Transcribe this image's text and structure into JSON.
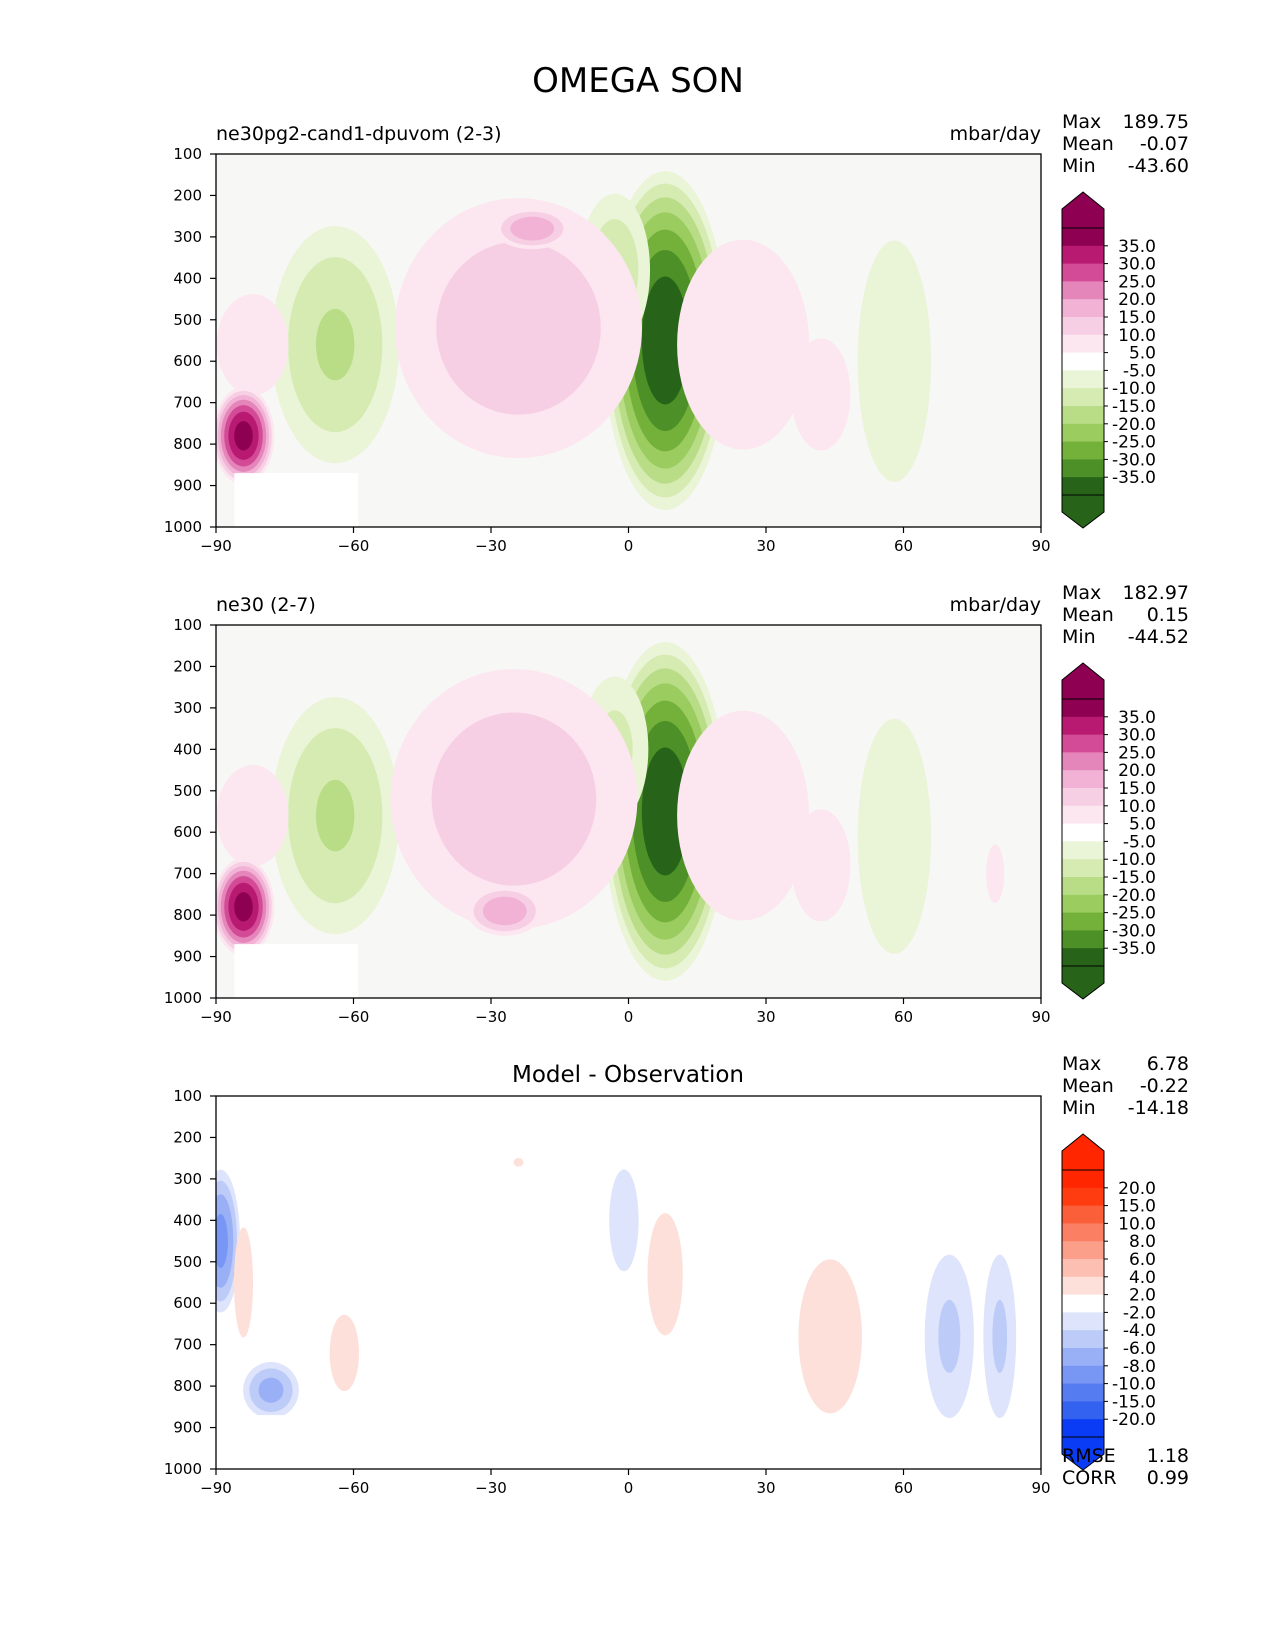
{
  "figure_title": "OMEGA SON",
  "colors": {
    "bg_field": "#f7f7f5",
    "mg_pos": [
      "#fce6f0",
      "#f7cfe4",
      "#f1b2d6",
      "#e586ba",
      "#d34a97",
      "#b81a71",
      "#8e0152"
    ],
    "mg_neg": [
      "#eaf4d6",
      "#d6ebb2",
      "#b8dd86",
      "#9acc60",
      "#74b13b",
      "#4d9028",
      "#276419"
    ],
    "rb_pos": [
      "#fde0da",
      "#fcbfb2",
      "#fc9f8a",
      "#fb7f62",
      "#fb5f3a",
      "#ff3b10",
      "#ff2600"
    ],
    "rb_neg": [
      "#dde4fb",
      "#bccbf8",
      "#9ab0f6",
      "#7896f4",
      "#567cf2",
      "#3361f0",
      "#0a3cf5"
    ]
  },
  "chart_data": [
    {
      "type": "contour",
      "title": "ne30pg2-cand1-dpuvom (2-3)",
      "units": "mbar/day",
      "stats": [
        {
          "label": "Max",
          "value": "189.75"
        },
        {
          "label": "Mean",
          "value": "-0.07"
        },
        {
          "label": "Min",
          "value": "-43.60"
        }
      ],
      "xlim": [
        -90,
        90
      ],
      "ylim": [
        1000,
        100
      ],
      "x_ticks": [
        "−90",
        "−60",
        "−30",
        "0",
        "30",
        "60",
        "90"
      ],
      "y_ticks": [
        "100",
        "200",
        "300",
        "400",
        "500",
        "600",
        "700",
        "800",
        "900",
        "1000"
      ],
      "colorbar_labels": [
        "35.0",
        "30.0",
        "25.0",
        "20.0",
        "15.0",
        "10.0",
        "5.0",
        "-5.0",
        "-10.0",
        "-15.0",
        "-20.0",
        "-25.0",
        "-30.0",
        "-35.0"
      ],
      "blobs": [
        {
          "lat": 8,
          "p": 550,
          "dlat": 6,
          "dp": 380,
          "val": -40
        },
        {
          "lat": -3,
          "p": 380,
          "dlat": 4,
          "dp": 200,
          "val": -14
        },
        {
          "lat": -64,
          "p": 560,
          "dlat": 7,
          "dp": 300,
          "val": -16
        },
        {
          "lat": 58,
          "p": 600,
          "dlat": 5,
          "dp": 380,
          "val": -9
        },
        {
          "lat": -24,
          "p": 520,
          "dlat": 14,
          "dp": 340,
          "val": 14
        },
        {
          "lat": -21,
          "p": 280,
          "dlat": 4,
          "dp": 50,
          "val": 20
        },
        {
          "lat": 25,
          "p": 560,
          "dlat": 9,
          "dp": 330,
          "val": 9
        },
        {
          "lat": 42,
          "p": 680,
          "dlat": 5,
          "dp": 220,
          "val": 7
        },
        {
          "lat": -82,
          "p": 560,
          "dlat": 8,
          "dp": 260,
          "val": 6
        },
        {
          "lat": -84,
          "p": 780,
          "dlat": 3,
          "dp": 110,
          "val": 38
        }
      ]
    },
    {
      "type": "contour",
      "title": "ne30 (2-7)",
      "units": "mbar/day",
      "stats": [
        {
          "label": "Max",
          "value": "182.97"
        },
        {
          "label": "Mean",
          "value": "0.15"
        },
        {
          "label": "Min",
          "value": "-44.52"
        }
      ],
      "xlim": [
        -90,
        90
      ],
      "ylim": [
        1000,
        100
      ],
      "x_ticks": [
        "−90",
        "−60",
        "−30",
        "0",
        "30",
        "60",
        "90"
      ],
      "y_ticks": [
        "100",
        "200",
        "300",
        "400",
        "500",
        "600",
        "700",
        "800",
        "900",
        "1000"
      ],
      "colorbar_labels": [
        "35.0",
        "30.0",
        "25.0",
        "20.0",
        "15.0",
        "10.0",
        "5.0",
        "-5.0",
        "-10.0",
        "-15.0",
        "-20.0",
        "-25.0",
        "-30.0",
        "-35.0"
      ],
      "blobs": [
        {
          "lat": 8,
          "p": 550,
          "dlat": 6,
          "dp": 380,
          "val": -40
        },
        {
          "lat": -3,
          "p": 400,
          "dlat": 4,
          "dp": 200,
          "val": -12
        },
        {
          "lat": -64,
          "p": 560,
          "dlat": 7,
          "dp": 300,
          "val": -16
        },
        {
          "lat": 58,
          "p": 610,
          "dlat": 5,
          "dp": 370,
          "val": -9
        },
        {
          "lat": -25,
          "p": 520,
          "dlat": 14,
          "dp": 340,
          "val": 14
        },
        {
          "lat": -27,
          "p": 790,
          "dlat": 4,
          "dp": 60,
          "val": 20
        },
        {
          "lat": 25,
          "p": 560,
          "dlat": 9,
          "dp": 330,
          "val": 9
        },
        {
          "lat": 42,
          "p": 680,
          "dlat": 5,
          "dp": 220,
          "val": 7
        },
        {
          "lat": 80,
          "p": 700,
          "dlat": 2,
          "dp": 150,
          "val": 6
        },
        {
          "lat": -82,
          "p": 560,
          "dlat": 8,
          "dp": 260,
          "val": 6
        },
        {
          "lat": -84,
          "p": 780,
          "dlat": 3,
          "dp": 110,
          "val": 38
        }
      ]
    },
    {
      "type": "contour",
      "title": "Model - Observation",
      "units": "",
      "stats": [
        {
          "label": "Max",
          "value": "6.78"
        },
        {
          "label": "Mean",
          "value": "-0.22"
        },
        {
          "label": "Min",
          "value": "-14.18"
        }
      ],
      "extra_stats": [
        {
          "label": "RMSE",
          "value": "1.18"
        },
        {
          "label": "CORR",
          "value": "0.99"
        }
      ],
      "xlim": [
        -90,
        90
      ],
      "ylim": [
        1000,
        100
      ],
      "x_ticks": [
        "−90",
        "−60",
        "−30",
        "0",
        "30",
        "60",
        "90"
      ],
      "y_ticks": [
        "100",
        "200",
        "300",
        "400",
        "500",
        "600",
        "700",
        "800",
        "900",
        "1000"
      ],
      "colorbar_labels": [
        "20.0",
        "15.0",
        "10.0",
        "8.0",
        "6.0",
        "4.0",
        "2.0",
        "-2.0",
        "-4.0",
        "-6.0",
        "-8.0",
        "-10.0",
        "-15.0",
        "-20.0"
      ],
      "blobs": [
        {
          "lat": -89,
          "p": 450,
          "dlat": 2,
          "dp": 170,
          "val": -9
        },
        {
          "lat": -78,
          "p": 810,
          "dlat": 3,
          "dp": 70,
          "val": -7
        },
        {
          "lat": -84,
          "p": 550,
          "dlat": 1.5,
          "dp": 200,
          "val": 3
        },
        {
          "lat": -62,
          "p": 720,
          "dlat": 2.5,
          "dp": 150,
          "val": 2.8
        },
        {
          "lat": -1,
          "p": 400,
          "dlat": 2.5,
          "dp": 200,
          "val": -2.8
        },
        {
          "lat": 8,
          "p": 530,
          "dlat": 3,
          "dp": 240,
          "val": 2.8
        },
        {
          "lat": 44,
          "p": 680,
          "dlat": 5,
          "dp": 280,
          "val": 3
        },
        {
          "lat": 70,
          "p": 680,
          "dlat": 3,
          "dp": 230,
          "val": -4.5
        },
        {
          "lat": 81,
          "p": 680,
          "dlat": 2,
          "dp": 230,
          "val": -4.5
        },
        {
          "lat": -24,
          "p": 260,
          "dlat": 1,
          "dp": 20,
          "val": 2.5
        }
      ]
    }
  ]
}
